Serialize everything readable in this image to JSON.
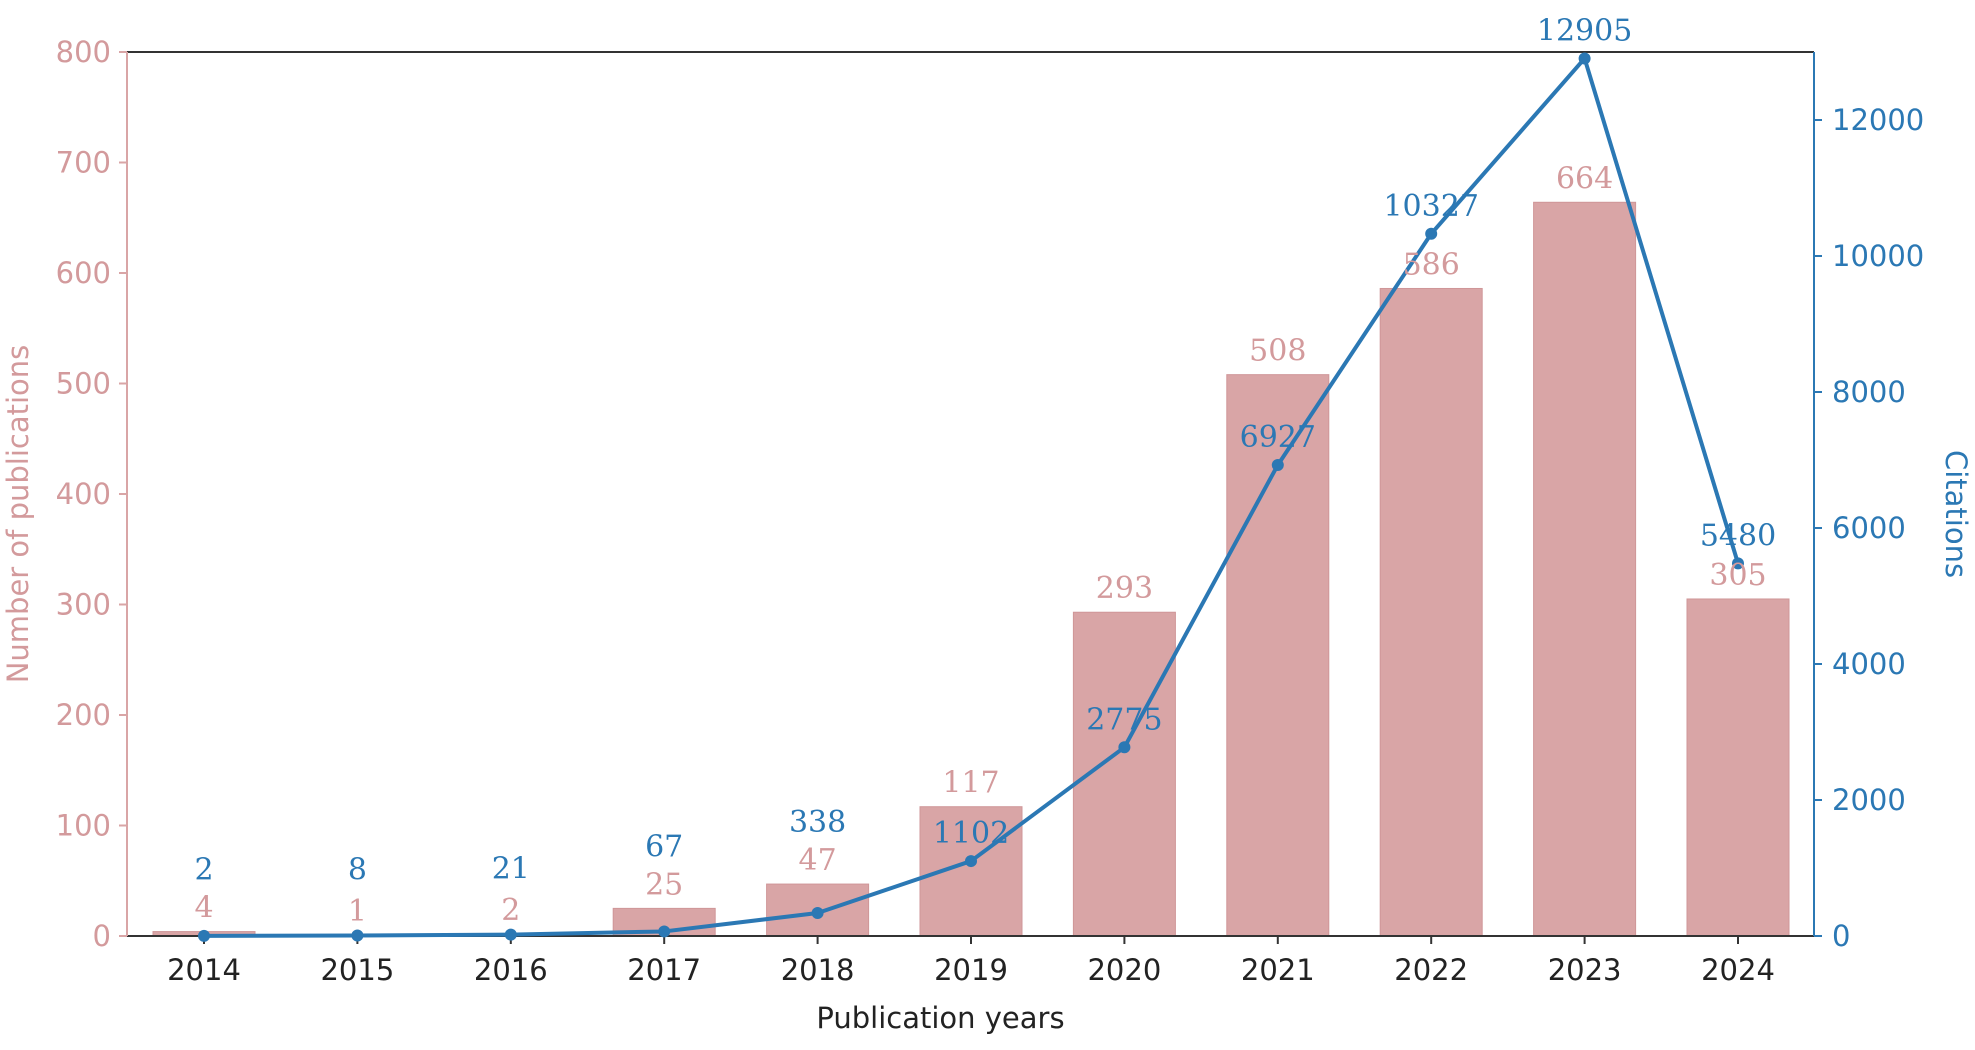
{
  "chart_data": {
    "type": "bar+line",
    "categories": [
      "2014",
      "2015",
      "2016",
      "2017",
      "2018",
      "2019",
      "2020",
      "2021",
      "2022",
      "2023",
      "2024"
    ],
    "series": [
      {
        "name": "Number of publications",
        "type": "bar",
        "axis": "left",
        "values": [
          4,
          1,
          2,
          25,
          47,
          117,
          293,
          508,
          586,
          664,
          305
        ],
        "labels": [
          "4",
          "1",
          "2",
          "25",
          "47",
          "117",
          "293",
          "508",
          "586",
          "664",
          "305"
        ]
      },
      {
        "name": "Citations",
        "type": "line",
        "axis": "right",
        "values": [
          2,
          8,
          21,
          67,
          338,
          1102,
          2775,
          6927,
          10327,
          12905,
          5480
        ],
        "labels": [
          "2",
          "8",
          "21",
          "67",
          "338",
          "1102",
          "2775",
          "6927",
          "10327",
          "12905",
          "5480"
        ]
      }
    ],
    "xlabel": "Publication years",
    "ylabel": "Number of publications",
    "y2label": "Citations",
    "ylim": [
      0,
      800
    ],
    "y2lim": [
      0,
      13000
    ],
    "yticks": [
      "0",
      "100",
      "200",
      "300",
      "400",
      "500",
      "600",
      "700",
      "800"
    ],
    "y2ticks": [
      "0",
      "2000",
      "4000",
      "6000",
      "8000",
      "10000",
      "12000"
    ],
    "colors": {
      "bar": "#d9a5a6",
      "bar_text": "#d39a9c",
      "line": "#2b78b4",
      "axis": "#333333"
    }
  }
}
